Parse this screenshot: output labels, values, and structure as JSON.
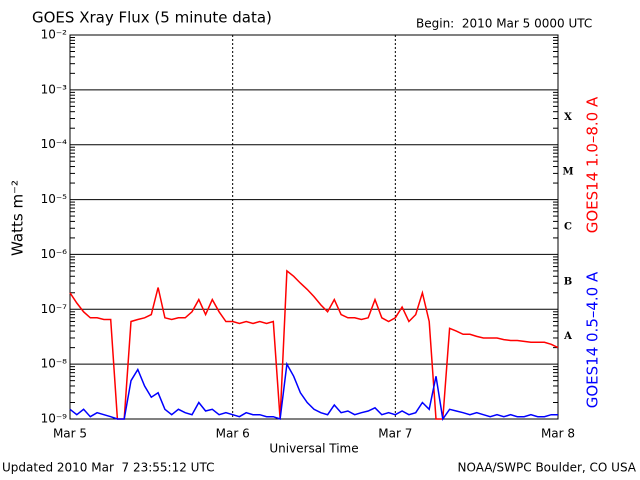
{
  "chart_data": {
    "type": "line",
    "title": "GOES Xray Flux (5 minute data)",
    "subtitle": "Begin:  2010 Mar 5 0000 UTC",
    "x_label": "Universal Time",
    "y_label": "Watts m⁻²",
    "footer_left": "Updated 2010 Mar  7 23:55:12 UTC",
    "footer_right": "NOAA/SWPC Boulder, CO USA",
    "flare_classes": [
      "A",
      "B",
      "C",
      "M",
      "X"
    ],
    "log_scale": true,
    "grid": true,
    "x": [
      0,
      1,
      2,
      3,
      4,
      5,
      6,
      7,
      8,
      9,
      10,
      11,
      12,
      13,
      14,
      15,
      16,
      17,
      18,
      19,
      20,
      21,
      22,
      23,
      24,
      25,
      26,
      27,
      28,
      29,
      30,
      31,
      32,
      33,
      34,
      35,
      36,
      37,
      38,
      39,
      40,
      41,
      42,
      43,
      44,
      45,
      46,
      47,
      48,
      49,
      50,
      51,
      52,
      53,
      54,
      55,
      56,
      57,
      58,
      59,
      60,
      61,
      62,
      63,
      64,
      65,
      66,
      67,
      68,
      69,
      70,
      71,
      72
    ],
    "xlim": [
      0,
      72
    ],
    "xticks": [
      {
        "value": 0,
        "label": "Mar 5"
      },
      {
        "value": 24,
        "label": "Mar 6"
      },
      {
        "value": 48,
        "label": "Mar 7"
      },
      {
        "value": 72,
        "label": "Mar 8"
      }
    ],
    "ylim": [
      1e-09,
      0.01
    ],
    "yticks": [
      {
        "value": 1e-09,
        "label": "10⁻⁹"
      },
      {
        "value": 1e-08,
        "label": "10⁻⁸"
      },
      {
        "value": 1e-07,
        "label": "10⁻⁷"
      },
      {
        "value": 1e-06,
        "label": "10⁻⁶"
      },
      {
        "value": 1e-05,
        "label": "10⁻⁵"
      },
      {
        "value": 0.0001,
        "label": "10⁻⁴"
      },
      {
        "value": 0.001,
        "label": "10⁻³"
      },
      {
        "value": 0.01,
        "label": "10⁻²"
      }
    ],
    "series": [
      {
        "name": "GOES14 1.0–8.0 A",
        "color": "#ff0000",
        "values": [
          2e-07,
          1.3e-07,
          9e-08,
          7e-08,
          7e-08,
          6.5e-08,
          6.5e-08,
          1e-09,
          1e-09,
          6e-08,
          6.5e-08,
          7e-08,
          8e-08,
          2.5e-07,
          7e-08,
          6.5e-08,
          7e-08,
          7e-08,
          9e-08,
          1.5e-07,
          8e-08,
          1.5e-07,
          9e-08,
          6e-08,
          6e-08,
          5.5e-08,
          6e-08,
          5.5e-08,
          6e-08,
          5.5e-08,
          6e-08,
          1e-09,
          5e-07,
          4e-07,
          3e-07,
          2.3e-07,
          1.7e-07,
          1.2e-07,
          9e-08,
          1.5e-07,
          8e-08,
          7e-08,
          7e-08,
          6.5e-08,
          7e-08,
          1.5e-07,
          7e-08,
          6e-08,
          7e-08,
          1.1e-07,
          6e-08,
          8e-08,
          2e-07,
          6e-08,
          1e-09,
          1e-09,
          4.5e-08,
          4e-08,
          3.5e-08,
          3.5e-08,
          3.2e-08,
          3e-08,
          3e-08,
          3e-08,
          2.8e-08,
          2.7e-08,
          2.7e-08,
          2.6e-08,
          2.5e-08,
          2.5e-08,
          2.5e-08,
          2.3e-08,
          2e-08
        ]
      },
      {
        "name": "GOES14 0.5–4.0 A",
        "color": "#0000ff",
        "values": [
          1.5e-09,
          1.2e-09,
          1.5e-09,
          1.1e-09,
          1.3e-09,
          1.2e-09,
          1.1e-09,
          1e-09,
          1e-09,
          5e-09,
          8e-09,
          4e-09,
          2.5e-09,
          3e-09,
          1.5e-09,
          1.2e-09,
          1.5e-09,
          1.3e-09,
          1.2e-09,
          2e-09,
          1.4e-09,
          1.5e-09,
          1.2e-09,
          1.3e-09,
          1.2e-09,
          1.1e-09,
          1.3e-09,
          1.2e-09,
          1.2e-09,
          1.1e-09,
          1.1e-09,
          1e-09,
          1e-08,
          6e-09,
          3e-09,
          2e-09,
          1.5e-09,
          1.3e-09,
          1.2e-09,
          1.8e-09,
          1.3e-09,
          1.4e-09,
          1.2e-09,
          1.3e-09,
          1.4e-09,
          1.6e-09,
          1.2e-09,
          1.3e-09,
          1.2e-09,
          1.4e-09,
          1.2e-09,
          1.3e-09,
          2e-09,
          1.5e-09,
          6e-09,
          1e-09,
          1.5e-09,
          1.4e-09,
          1.3e-09,
          1.2e-09,
          1.3e-09,
          1.2e-09,
          1.1e-09,
          1.2e-09,
          1.1e-09,
          1.2e-09,
          1.1e-09,
          1.1e-09,
          1.2e-09,
          1.1e-09,
          1.1e-09,
          1.2e-09,
          1.2e-09
        ]
      }
    ]
  }
}
